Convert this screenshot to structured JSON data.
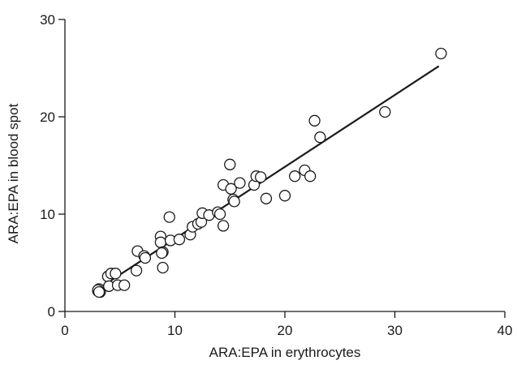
{
  "chart_data": {
    "type": "scatter",
    "xlabel": "ARA:EPA in erythrocytes",
    "ylabel": "ARA:EPA in blood spot",
    "xlim": [
      0,
      40
    ],
    "ylim": [
      0,
      30
    ],
    "xticks": [
      0,
      10,
      20,
      30,
      40
    ],
    "yticks": [
      0,
      10,
      20,
      30
    ],
    "grid": false,
    "marker": "open-circle",
    "points": [
      [
        3.0,
        2.1
      ],
      [
        3.1,
        2.3
      ],
      [
        3.2,
        2.0
      ],
      [
        3.0,
        2.2
      ],
      [
        3.1,
        2.0
      ],
      [
        3.9,
        3.6
      ],
      [
        4.2,
        3.9
      ],
      [
        4.6,
        3.9
      ],
      [
        4.0,
        2.6
      ],
      [
        4.8,
        2.7
      ],
      [
        5.4,
        2.7
      ],
      [
        6.6,
        6.2
      ],
      [
        6.5,
        4.2
      ],
      [
        7.2,
        5.7
      ],
      [
        7.3,
        5.5
      ],
      [
        8.7,
        7.7
      ],
      [
        8.7,
        7.1
      ],
      [
        8.9,
        6.1
      ],
      [
        8.8,
        6.0
      ],
      [
        8.9,
        4.5
      ],
      [
        9.5,
        9.7
      ],
      [
        9.6,
        7.3
      ],
      [
        10.4,
        7.4
      ],
      [
        11.4,
        7.9
      ],
      [
        11.6,
        8.7
      ],
      [
        12.1,
        9.0
      ],
      [
        12.4,
        9.2
      ],
      [
        12.5,
        10.1
      ],
      [
        13.1,
        9.9
      ],
      [
        13.9,
        10.2
      ],
      [
        14.1,
        10.0
      ],
      [
        14.4,
        8.8
      ],
      [
        14.4,
        13.0
      ],
      [
        15.0,
        15.1
      ],
      [
        15.1,
        12.6
      ],
      [
        15.3,
        11.5
      ],
      [
        15.4,
        11.3
      ],
      [
        15.9,
        13.2
      ],
      [
        17.2,
        13.0
      ],
      [
        17.4,
        13.9
      ],
      [
        17.8,
        13.8
      ],
      [
        18.3,
        11.6
      ],
      [
        20.0,
        11.9
      ],
      [
        20.9,
        13.9
      ],
      [
        21.8,
        14.5
      ],
      [
        22.3,
        13.9
      ],
      [
        22.7,
        19.6
      ],
      [
        23.2,
        17.9
      ],
      [
        29.1,
        20.5
      ],
      [
        34.2,
        26.5
      ]
    ],
    "fit_line": {
      "x": [
        3.0,
        34.0
      ],
      "y": [
        2.3,
        25.2
      ]
    }
  },
  "colors": {
    "ink": "#1a1a1a",
    "background": "#ffffff",
    "marker_fill": "#ffffff"
  }
}
